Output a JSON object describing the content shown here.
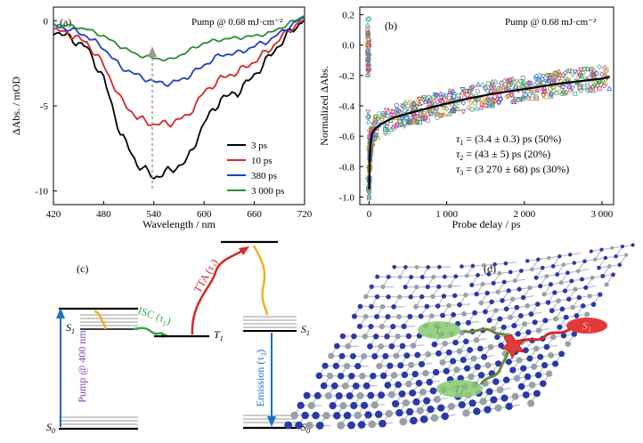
{
  "panels": {
    "a": {
      "label": "(a)",
      "annotation": "Pump @ 0.68 mJ·cm⁻²",
      "xlabel": "Wavelength / nm",
      "ylabel": "ΔAbs. / mOD",
      "colors": {
        "3ps": "#000000",
        "10ps": "#d62728",
        "380ps": "#1f3fc4",
        "3000ps": "#2e8b2e",
        "arrow": "#9a9a9a"
      }
    },
    "b": {
      "label": "(b)",
      "annotation": "Pump @ 0.68 mJ·cm⁻²",
      "xlabel": "Probe delay / ps",
      "ylabel": "Normalized ΔAbs.",
      "tau_lines": [
        {
          "sym": "τ",
          "sub": "1",
          "rest": " = (3.4 ± 0.3) ps (50%)"
        },
        {
          "sym": "τ",
          "sub": "2",
          "rest": " = (43 ± 5) ps (20%)"
        },
        {
          "sym": "τ",
          "sub": "3",
          "rest": " = (3 270 ± 68) ps (30%)"
        }
      ],
      "marker_colors": [
        "#2ba84a",
        "#c43bb0",
        "#2b6fd6",
        "#3fb0b0",
        "#d64a4a",
        "#8a8a8a",
        "#e0a020"
      ]
    },
    "c": {
      "label": "(c)",
      "pump_label": "Pump @ 400 nm",
      "isc_label": "ISC (τ",
      "isc_sub": "1",
      "tta_label": "TTA (τ",
      "tta_sub": "2",
      "emission_label": "Emission (τ",
      "emission_sub": "3",
      "paren_close": ")",
      "s1": "S",
      "s1_sub": "1",
      "t1": "T",
      "t1_sub": "1",
      "s0": "S",
      "s0_sub": "0",
      "colors": {
        "pump": "#1f6fc4",
        "isc": "#3aa84a",
        "tta": "#d62728",
        "relax": "#f0b020",
        "emission": "#1f6fc4"
      }
    },
    "d": {
      "label": "(d)",
      "state_t": "T",
      "state_t_sub": "1",
      "state_s": "S",
      "state_s_sub": "1",
      "colors": {
        "carbon": "#9aa0a8",
        "nitrogen": "#2a3aa8",
        "triplet": "#8fce7a",
        "singlet": "#e23a3a"
      }
    }
  },
  "chart_data": [
    {
      "type": "line",
      "panel": "a",
      "xlabel": "Wavelength / nm",
      "ylabel": "ΔAbs. / mOD",
      "xlim": [
        420,
        720
      ],
      "ylim": [
        -10.8,
        0.8
      ],
      "xticks": [
        420,
        480,
        540,
        600,
        660,
        720
      ],
      "yticks": [
        0,
        -5,
        -10
      ],
      "x": [
        420,
        440,
        460,
        480,
        500,
        520,
        540,
        560,
        580,
        600,
        620,
        640,
        660,
        680,
        700,
        720
      ],
      "series": [
        {
          "name": "3 ps",
          "values": [
            -0.6,
            -1.0,
            -1.6,
            -3.4,
            -6.6,
            -8.4,
            -9.2,
            -8.8,
            -8.2,
            -6.0,
            -4.6,
            -4.2,
            -3.2,
            -2.0,
            -0.8,
            0.1
          ]
        },
        {
          "name": "10 ps",
          "values": [
            -0.5,
            -0.8,
            -1.3,
            -2.6,
            -4.6,
            -5.7,
            -6.1,
            -6.0,
            -5.6,
            -4.2,
            -3.4,
            -3.0,
            -2.4,
            -1.6,
            -0.6,
            0.1
          ]
        },
        {
          "name": "380 ps",
          "values": [
            -0.3,
            -0.5,
            -0.9,
            -1.6,
            -2.7,
            -3.2,
            -3.6,
            -3.7,
            -3.3,
            -2.6,
            -2.0,
            -1.9,
            -1.5,
            -1.1,
            -0.4,
            0.2
          ]
        },
        {
          "name": "3 000 ps",
          "values": [
            -0.2,
            -0.3,
            -0.5,
            -0.9,
            -1.5,
            -2.0,
            -2.2,
            -2.3,
            -1.8,
            -1.3,
            -1.1,
            -1.0,
            -0.9,
            -0.7,
            -0.2,
            0.3
          ]
        }
      ]
    },
    {
      "type": "scatter",
      "panel": "b",
      "xlabel": "Probe delay / ps",
      "ylabel": "Normalized ΔAbs.",
      "xlim": [
        -120,
        3150
      ],
      "ylim": [
        -1.05,
        0.25
      ],
      "xticks": [
        0,
        1000,
        2000,
        3000
      ],
      "xtick_labels": [
        "0",
        "1 000",
        "2 000",
        "3 000"
      ],
      "yticks": [
        0.2,
        0.0,
        -0.2,
        -0.4,
        -0.6,
        -0.8,
        -1.0
      ],
      "ytick_labels": [
        "0.2",
        "0.0",
        "-0.2",
        "-0.4",
        "-0.6",
        "-0.8",
        "-1.0"
      ],
      "fit": {
        "x": [
          0,
          5,
          10,
          20,
          40,
          80,
          150,
          300,
          500,
          800,
          1200,
          1600,
          2000,
          2500,
          3000,
          3100
        ],
        "y": [
          -0.95,
          -0.82,
          -0.72,
          -0.64,
          -0.58,
          -0.55,
          -0.52,
          -0.48,
          -0.45,
          -0.41,
          -0.36,
          -0.32,
          -0.29,
          -0.25,
          -0.22,
          -0.21
        ]
      }
    }
  ]
}
